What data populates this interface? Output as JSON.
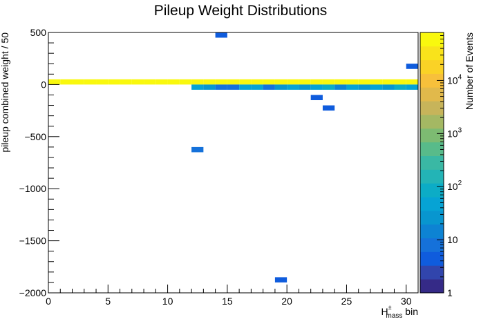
{
  "chart_data": {
    "type": "heatmap",
    "title": "Pileup Weight Distributions",
    "xlabel_main": "H",
    "xlabel_sup": "±",
    "xlabel_sub": "mass",
    "xlabel_tail": " bin",
    "ylabel": "pileup combined weight / 50",
    "zlabel": "Number of Events",
    "xlim": [
      0,
      31
    ],
    "ylim": [
      -2000,
      500
    ],
    "zlim": [
      1,
      80000
    ],
    "zscale": "log",
    "x_ticks": [
      0,
      5,
      10,
      15,
      20,
      25,
      30
    ],
    "y_ticks": [
      500,
      0,
      -500,
      -1000,
      -1500,
      -2000
    ],
    "x_tick_labels": [
      "0",
      "5",
      "10",
      "15",
      "20",
      "25",
      "30"
    ],
    "y_tick_labels": [
      "500",
      "0",
      "−500",
      "−1000",
      "−1500",
      "−2000"
    ],
    "z_tick_labels": [
      {
        "value": 1,
        "base": "1",
        "exp": ""
      },
      {
        "value": 10,
        "base": "10",
        "exp": ""
      },
      {
        "value": 100,
        "base": "10",
        "exp": "2"
      },
      {
        "value": 1000,
        "base": "10",
        "exp": "3"
      },
      {
        "value": 10000,
        "base": "10",
        "exp": "4"
      }
    ],
    "bin_width_x": 1,
    "bin_width_y": 50,
    "cells": [
      {
        "x": 0,
        "y": 0,
        "z": 60000
      },
      {
        "x": 1,
        "y": 0,
        "z": 60000
      },
      {
        "x": 2,
        "y": 0,
        "z": 60000
      },
      {
        "x": 3,
        "y": 0,
        "z": 60000
      },
      {
        "x": 4,
        "y": 0,
        "z": 60000
      },
      {
        "x": 5,
        "y": 0,
        "z": 60000
      },
      {
        "x": 6,
        "y": 0,
        "z": 60000
      },
      {
        "x": 7,
        "y": 0,
        "z": 60000
      },
      {
        "x": 8,
        "y": 0,
        "z": 60000
      },
      {
        "x": 9,
        "y": 0,
        "z": 60000
      },
      {
        "x": 10,
        "y": 0,
        "z": 60000
      },
      {
        "x": 11,
        "y": 0,
        "z": 60000
      },
      {
        "x": 12,
        "y": 0,
        "z": 60000
      },
      {
        "x": 13,
        "y": 0,
        "z": 60000
      },
      {
        "x": 14,
        "y": 0,
        "z": 60000
      },
      {
        "x": 15,
        "y": 0,
        "z": 60000
      },
      {
        "x": 16,
        "y": 0,
        "z": 60000
      },
      {
        "x": 17,
        "y": 0,
        "z": 60000
      },
      {
        "x": 18,
        "y": 0,
        "z": 60000
      },
      {
        "x": 19,
        "y": 0,
        "z": 60000
      },
      {
        "x": 20,
        "y": 0,
        "z": 60000
      },
      {
        "x": 21,
        "y": 0,
        "z": 60000
      },
      {
        "x": 22,
        "y": 0,
        "z": 60000
      },
      {
        "x": 23,
        "y": 0,
        "z": 60000
      },
      {
        "x": 24,
        "y": 0,
        "z": 60000
      },
      {
        "x": 25,
        "y": 0,
        "z": 60000
      },
      {
        "x": 26,
        "y": 0,
        "z": 60000
      },
      {
        "x": 27,
        "y": 0,
        "z": 60000
      },
      {
        "x": 28,
        "y": 0,
        "z": 60000
      },
      {
        "x": 29,
        "y": 0,
        "z": 60000
      },
      {
        "x": 30,
        "y": 0,
        "z": 60000
      },
      {
        "x": 12,
        "y": -50,
        "z": 40
      },
      {
        "x": 13,
        "y": -50,
        "z": 25
      },
      {
        "x": 14,
        "y": -50,
        "z": 10
      },
      {
        "x": 15,
        "y": -50,
        "z": 10
      },
      {
        "x": 16,
        "y": -50,
        "z": 50
      },
      {
        "x": 17,
        "y": -50,
        "z": 60
      },
      {
        "x": 18,
        "y": -50,
        "z": 10
      },
      {
        "x": 19,
        "y": -50,
        "z": 25
      },
      {
        "x": 20,
        "y": -50,
        "z": 50
      },
      {
        "x": 21,
        "y": -50,
        "z": 25
      },
      {
        "x": 22,
        "y": -50,
        "z": 60
      },
      {
        "x": 23,
        "y": -50,
        "z": 80
      },
      {
        "x": 24,
        "y": -50,
        "z": 15
      },
      {
        "x": 25,
        "y": -50,
        "z": 60
      },
      {
        "x": 26,
        "y": -50,
        "z": 25
      },
      {
        "x": 27,
        "y": -50,
        "z": 60
      },
      {
        "x": 28,
        "y": -50,
        "z": 30
      },
      {
        "x": 29,
        "y": -50,
        "z": 80
      },
      {
        "x": 30,
        "y": -50,
        "z": 60
      },
      {
        "x": 14,
        "y": 450,
        "z": 4
      },
      {
        "x": 30,
        "y": 150,
        "z": 4
      },
      {
        "x": 22,
        "y": -150,
        "z": 4
      },
      {
        "x": 23,
        "y": -250,
        "z": 5
      },
      {
        "x": 12,
        "y": -650,
        "z": 6
      },
      {
        "x": 19,
        "y": -1900,
        "z": 4
      }
    ],
    "palette": [
      "#352a87",
      "#3145ac",
      "#0f5cdd",
      "#1571da",
      "#0d83d3",
      "#0896cf",
      "#06a3d4",
      "#0cacc6",
      "#23b4b6",
      "#3ab8a4",
      "#58bb8a",
      "#7dbb72",
      "#a4b863",
      "#c7b45a",
      "#e1b94b",
      "#f7c03b",
      "#fad226",
      "#f9e31b",
      "#f9f80e"
    ],
    "grid": false,
    "legend": "colorbar right"
  }
}
